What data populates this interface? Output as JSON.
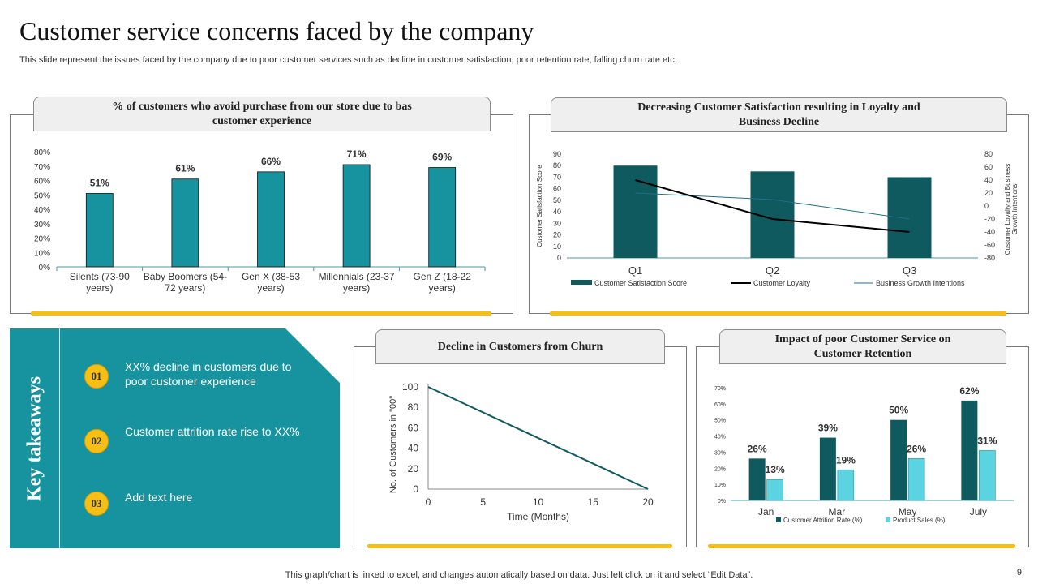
{
  "title": "Customer service concerns faced by the company",
  "subtitle": "This slide represent the issues faced by the company due to poor customer services such as decline in customer satisfaction, poor retention rate, falling churn rate etc.",
  "footer": "This graph/chart is linked to excel, and changes automatically based on data. Just left click on it and select “Edit Data”.",
  "page_number": "9",
  "colors": {
    "teal": "#17939f",
    "dark_teal": "#0f5a5f",
    "light_teal": "#5bd3e0",
    "yellow": "#f6bf15"
  },
  "panels": {
    "avoid": {
      "title_line1": "% of customers who avoid purchase from our store due to bas",
      "title_line2": "customer experience"
    },
    "satisfaction": {
      "title_line1": "Decreasing Customer Satisfaction resulting in Loyalty and",
      "title_line2": "Business Decline"
    },
    "churn": {
      "title": "Decline in Customers from Churn"
    },
    "retention": {
      "title_line1": "Impact of poor Customer Service on",
      "title_line2": "Customer Retention"
    }
  },
  "takeaways": {
    "label": "Key takeaways",
    "items": [
      {
        "num": "01",
        "text": "XX% decline in customers due to poor customer experience"
      },
      {
        "num": "02",
        "text": "Customer attrition rate rise to XX%"
      },
      {
        "num": "03",
        "text": "Add text here"
      }
    ]
  },
  "chart_data": [
    {
      "id": "avoid",
      "type": "bar",
      "categories": [
        [
          "Silents (73-90",
          "years)"
        ],
        [
          "Baby Boomers (54-",
          "72 years)"
        ],
        [
          "Gen X (38-53",
          "years)"
        ],
        [
          "Millennials (23-37",
          "years)"
        ],
        [
          "Gen Z (18-22",
          "years)"
        ]
      ],
      "values": [
        51,
        61,
        66,
        71,
        69
      ],
      "data_labels": [
        "51%",
        "61%",
        "66%",
        "71%",
        "69%"
      ],
      "ylim": [
        0,
        80
      ],
      "yticks": [
        "0%",
        "10%",
        "20%",
        "30%",
        "40%",
        "50%",
        "60%",
        "70%",
        "80%"
      ]
    },
    {
      "id": "satisfaction",
      "type": "bar",
      "categories": [
        "Q1",
        "Q2",
        "Q3"
      ],
      "series": [
        {
          "name": "Customer Satisfaction Score",
          "type": "bar",
          "axis": "left",
          "values": [
            80,
            75,
            70
          ]
        },
        {
          "name": "Customer Loyalty",
          "type": "line",
          "axis": "right",
          "values": [
            40,
            -20,
            -40
          ]
        },
        {
          "name": "Business Growth Intentions",
          "type": "line",
          "axis": "right",
          "values": [
            20,
            10,
            -20
          ]
        }
      ],
      "ylabel": "Customer Satisfaction Score",
      "y2label_line1": "Customer Loyalty and Business",
      "y2label_line2": "Growth Intentions",
      "ylim": [
        0,
        90
      ],
      "yticks": [
        "0",
        "10",
        "20",
        "30",
        "40",
        "50",
        "60",
        "70",
        "80",
        "90"
      ],
      "y2lim": [
        -80,
        80
      ],
      "y2ticks": [
        "-80",
        "-60",
        "-40",
        "-20",
        "0",
        "20",
        "40",
        "60",
        "80"
      ]
    },
    {
      "id": "churn",
      "type": "line",
      "x": [
        0,
        20
      ],
      "y": [
        100,
        0
      ],
      "xlabel": "Time (Months)",
      "ylabel": "No. of Customers in \"00\"",
      "xlim": [
        0,
        20
      ],
      "ylim": [
        0,
        100
      ],
      "xticks": [
        "0",
        "5",
        "10",
        "15",
        "20"
      ],
      "yticks": [
        "0",
        "20",
        "40",
        "60",
        "80",
        "100"
      ]
    },
    {
      "id": "retention",
      "type": "bar",
      "categories": [
        "Jan",
        "Mar",
        "May",
        "July"
      ],
      "series": [
        {
          "name": "Customer Attrition Rate (%)",
          "values": [
            26,
            39,
            50,
            62
          ],
          "labels": [
            "26%",
            "39%",
            "50%",
            "62%"
          ]
        },
        {
          "name": "Product Sales (%)",
          "values": [
            13,
            19,
            26,
            31
          ],
          "labels": [
            "13%",
            "19%",
            "26%",
            "31%"
          ]
        }
      ],
      "ylim": [
        0,
        70
      ],
      "yticks": [
        "0%",
        "10%",
        "20%",
        "30%",
        "40%",
        "50%",
        "60%",
        "70%"
      ]
    }
  ]
}
